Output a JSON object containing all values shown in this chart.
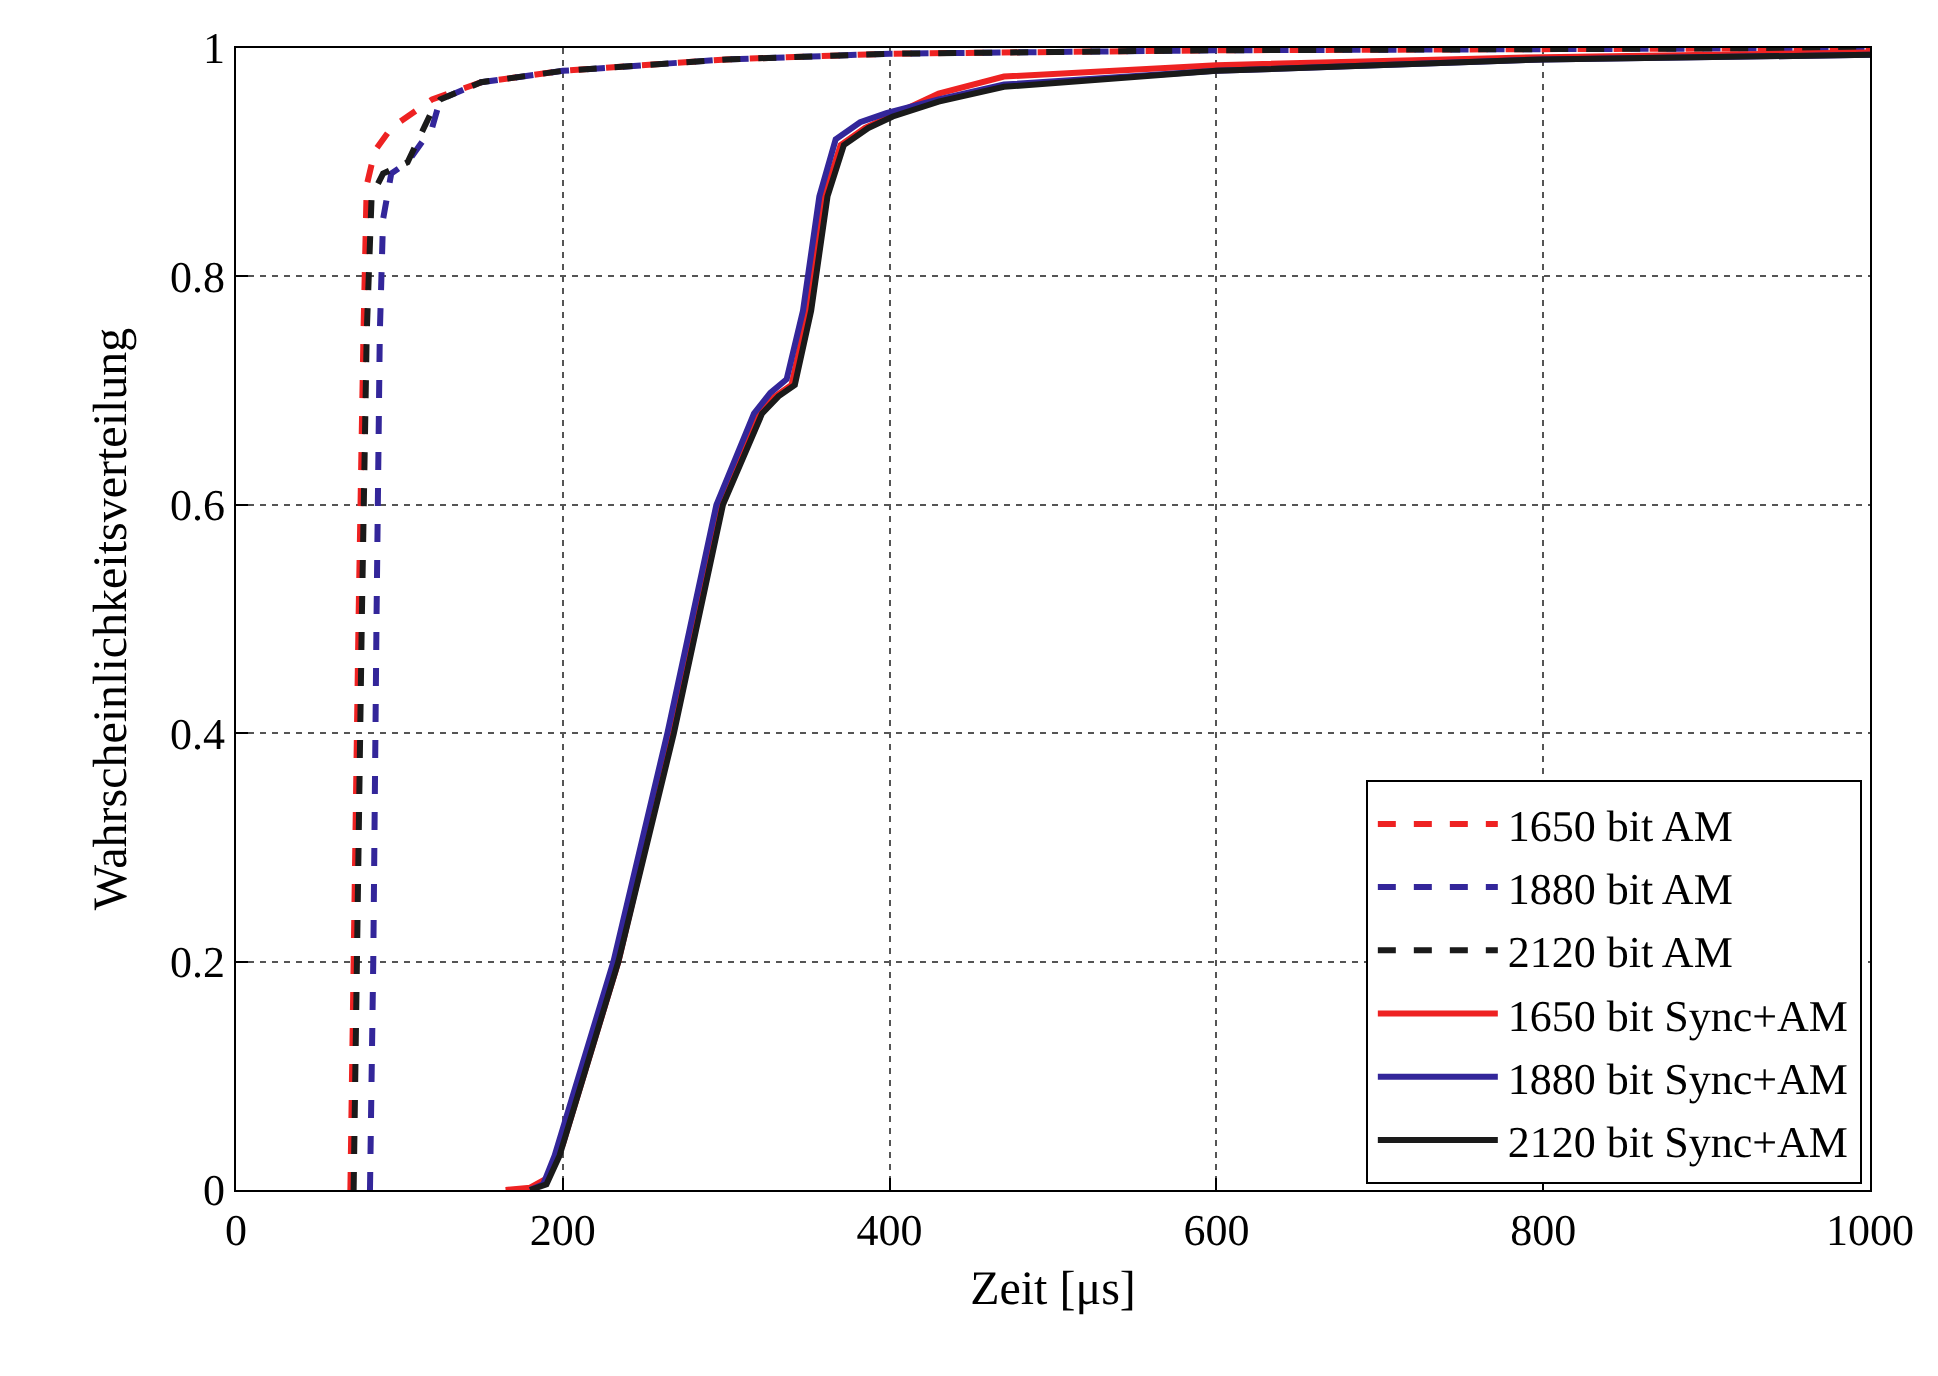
{
  "chart_data": {
    "type": "line",
    "xlabel": "Zeit [μs]",
    "ylabel": "Wahrscheinlichkeitsverteilung",
    "xlim": [
      0,
      1000
    ],
    "xticks": [
      0,
      200,
      400,
      600,
      800,
      1000
    ],
    "ylim": [
      0,
      1
    ],
    "yticks": [
      0,
      0.2,
      0.4,
      0.6,
      0.8,
      1
    ],
    "grid": true,
    "legend": "bottom right",
    "marker": "none",
    "series": [
      {
        "name": "1650 bit AM",
        "color": "#ee2222",
        "line_style": "dashed",
        "x": [
          70,
          72,
          75,
          78,
          80,
          85,
          95,
          110,
          120,
          150,
          200,
          300,
          400,
          600,
          1000
        ],
        "values": [
          0,
          0.2,
          0.5,
          0.75,
          0.88,
          0.91,
          0.93,
          0.945,
          0.955,
          0.97,
          0.98,
          0.99,
          0.995,
          0.998,
          1.0
        ]
      },
      {
        "name": "1880 bit AM",
        "color": "#33269a",
        "line_style": "dashed",
        "x": [
          82,
          84,
          86,
          88,
          90,
          95,
          105,
          120,
          125,
          150,
          200,
          300,
          400,
          600,
          1000
        ],
        "values": [
          0,
          0.2,
          0.5,
          0.75,
          0.85,
          0.89,
          0.9,
          0.93,
          0.955,
          0.97,
          0.98,
          0.99,
          0.995,
          0.998,
          1.0
        ]
      },
      {
        "name": "2120 bit AM",
        "color": "#1a1a1a",
        "line_style": "dashed",
        "x": [
          72,
          74,
          77,
          80,
          83,
          90,
          105,
          120,
          125,
          150,
          200,
          300,
          400,
          600,
          1000
        ],
        "values": [
          0,
          0.2,
          0.5,
          0.75,
          0.87,
          0.89,
          0.9,
          0.945,
          0.955,
          0.97,
          0.98,
          0.99,
          0.995,
          0.998,
          1.0
        ]
      },
      {
        "name": "1650 bit Sync+AM",
        "color": "#ee2222",
        "line_style": "solid",
        "x": [
          165,
          180,
          190,
          200,
          234,
          267,
          297,
          320,
          330,
          340,
          350,
          360,
          370,
          385,
          400,
          430,
          470,
          600,
          800,
          1000
        ],
        "values": [
          0,
          0.002,
          0.01,
          0.04,
          0.2,
          0.4,
          0.6,
          0.68,
          0.695,
          0.705,
          0.77,
          0.87,
          0.915,
          0.93,
          0.94,
          0.96,
          0.975,
          0.985,
          0.992,
          0.996
        ]
      },
      {
        "name": "1880 bit Sync+AM",
        "color": "#33269a",
        "line_style": "solid",
        "x": [
          180,
          188,
          195,
          231,
          264,
          294,
          317,
          327,
          337,
          347,
          357,
          367,
          382,
          398,
          430,
          470,
          600,
          800,
          1000
        ],
        "values": [
          0,
          0.005,
          0.03,
          0.2,
          0.4,
          0.6,
          0.68,
          0.698,
          0.71,
          0.77,
          0.87,
          0.92,
          0.935,
          0.943,
          0.955,
          0.968,
          0.98,
          0.99,
          0.994
        ]
      },
      {
        "name": "2120 bit Sync+AM",
        "color": "#1a1a1a",
        "line_style": "solid",
        "x": [
          180,
          190,
          198,
          234,
          268,
          298,
          322,
          332,
          342,
          352,
          362,
          372,
          387,
          402,
          430,
          470,
          600,
          800,
          1000
        ],
        "values": [
          0,
          0.005,
          0.03,
          0.2,
          0.4,
          0.6,
          0.68,
          0.695,
          0.705,
          0.77,
          0.87,
          0.915,
          0.93,
          0.94,
          0.953,
          0.966,
          0.98,
          0.99,
          0.994
        ]
      }
    ]
  }
}
